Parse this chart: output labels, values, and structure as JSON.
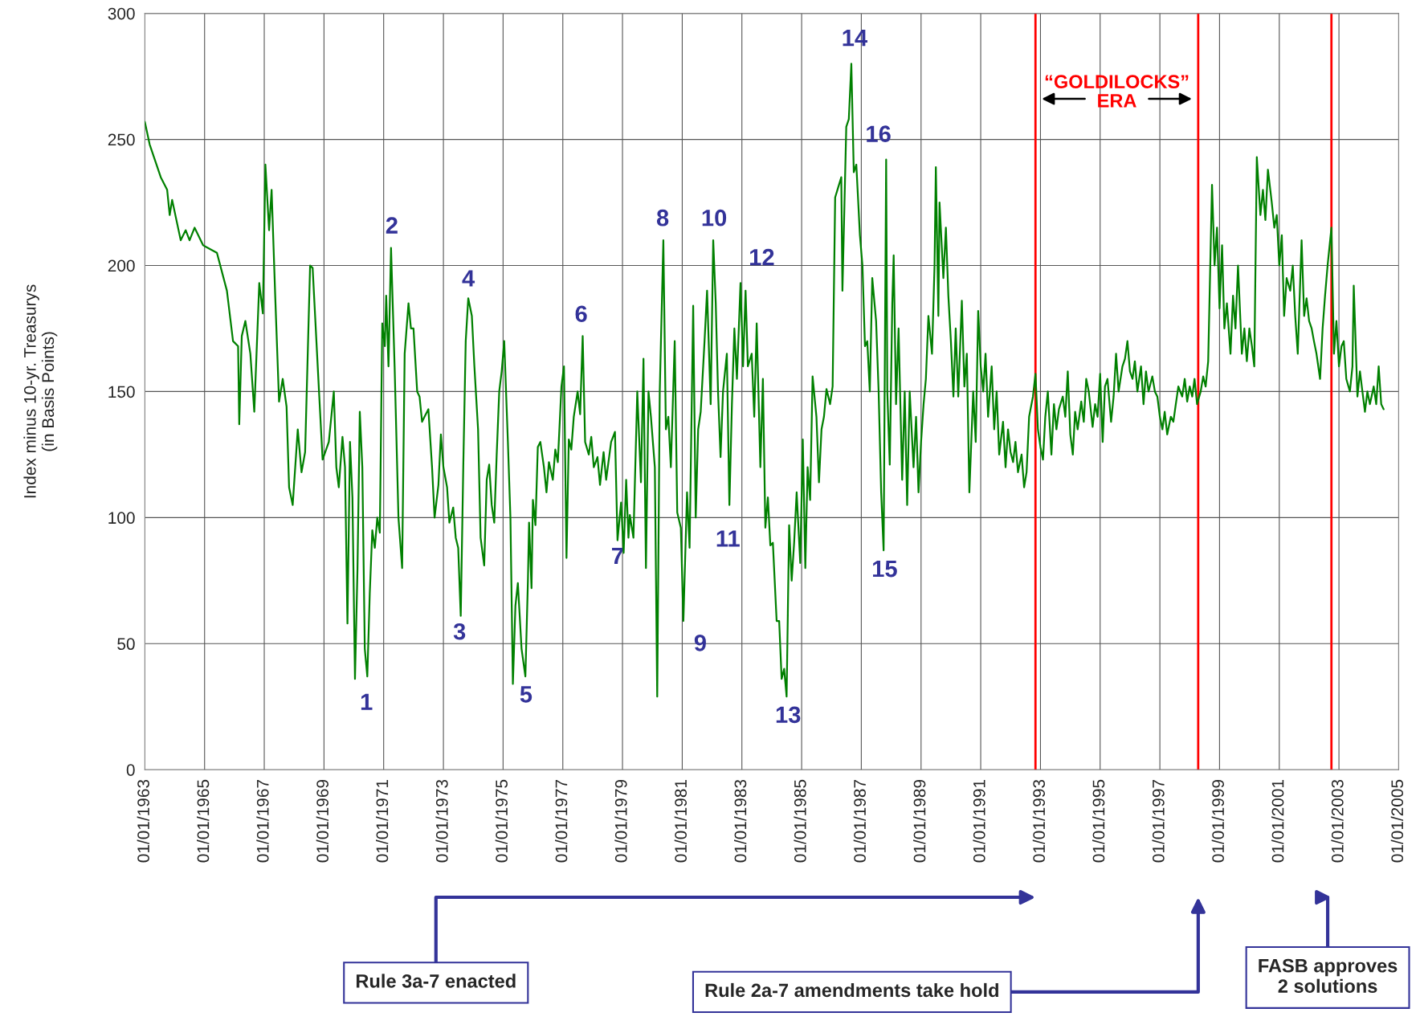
{
  "chart_data": {
    "type": "line",
    "ylabel": "Index minus 10-yr. Treasurys\n(in Basis Points)",
    "xlim": [
      "1963-01-01",
      "2005-01-01"
    ],
    "ylim": [
      0,
      300
    ],
    "yticks": [
      0,
      50,
      100,
      150,
      200,
      250,
      300
    ],
    "xticks": [
      {
        "value": "1963-01-01",
        "label": "01/01/1963"
      },
      {
        "value": "1965-01-01",
        "label": "01/01/1965"
      },
      {
        "value": "1967-01-01",
        "label": "01/01/1967"
      },
      {
        "value": "1969-01-01",
        "label": "01/01/1969"
      },
      {
        "value": "1971-01-01",
        "label": "01/01/1971"
      },
      {
        "value": "1973-01-01",
        "label": "01/01/1973"
      },
      {
        "value": "1975-01-01",
        "label": "01/01/1975"
      },
      {
        "value": "1977-01-01",
        "label": "01/01/1977"
      },
      {
        "value": "1979-01-01",
        "label": "01/01/1979"
      },
      {
        "value": "1981-01-01",
        "label": "01/01/1981"
      },
      {
        "value": "1983-01-01",
        "label": "01/01/1983"
      },
      {
        "value": "1985-01-01",
        "label": "01/01/1985"
      },
      {
        "value": "1987-01-01",
        "label": "01/01/1987"
      },
      {
        "value": "1989-01-01",
        "label": "01/01/1989"
      },
      {
        "value": "1991-01-01",
        "label": "01/01/1991"
      },
      {
        "value": "1993-01-01",
        "label": "01/01/1993"
      },
      {
        "value": "1995-01-01",
        "label": "01/01/1995"
      },
      {
        "value": "1997-01-01",
        "label": "01/01/1997"
      },
      {
        "value": "1999-01-01",
        "label": "01/01/1999"
      },
      {
        "value": "2001-01-01",
        "label": "01/01/2001"
      },
      {
        "value": "2003-01-01",
        "label": "01/01/2003"
      },
      {
        "value": "2005-01-01",
        "label": "01/01/2005"
      }
    ],
    "grid": true,
    "marker": "none",
    "line_style": "solid",
    "series": [
      {
        "color": "#008000",
        "x": [
          "1963-01-01",
          "1963-03-01",
          "1963-07-15",
          "1963-10-01",
          "1963-11-01",
          "1963-12-01",
          "1964-03-15",
          "1964-05-15",
          "1964-07-01",
          "1964-09-01",
          "1964-12-15",
          "1965-06-01",
          "1965-10-01",
          "1965-12-15",
          "1966-02-15",
          "1966-03-01",
          "1966-04-01",
          "1966-05-15",
          "1966-07-15",
          "1966-09-01",
          "1966-11-01",
          "1966-12-15",
          "1967-01-15",
          "1967-03-01",
          "1967-04-01",
          "1967-05-15",
          "1967-07-01",
          "1967-08-15",
          "1967-10-01",
          "1967-11-01",
          "1967-12-15",
          "1968-02-15",
          "1968-04-01",
          "1968-05-15",
          "1968-07-15",
          "1968-08-15",
          "1968-11-01",
          "1968-12-15",
          "1969-03-01",
          "1969-05-01",
          "1969-06-01",
          "1969-07-01",
          "1969-08-15",
          "1969-09-15",
          "1969-10-15",
          "1969-11-15",
          "1969-12-15",
          "1970-01-15",
          "1970-02-15",
          "1970-03-15",
          "1970-04-15",
          "1970-05-15",
          "1970-06-15",
          "1970-07-15",
          "1970-08-15",
          "1970-09-15",
          "1970-10-15",
          "1970-11-15",
          "1970-12-15",
          "1971-01-15",
          "1971-02-01",
          "1971-03-01",
          "1971-04-01",
          "1971-05-15",
          "1971-07-01",
          "1971-08-15",
          "1971-09-15",
          "1971-11-01",
          "1971-12-01",
          "1972-01-01",
          "1972-02-15",
          "1972-03-15",
          "1972-04-15",
          "1972-05-15",
          "1972-07-01",
          "1972-08-15",
          "1972-09-15",
          "1972-11-01",
          "1972-12-01",
          "1973-01-01",
          "1973-02-15",
          "1973-03-15",
          "1973-05-01",
          "1973-06-01",
          "1973-07-01",
          "1973-08-01",
          "1973-09-01",
          "1973-10-01",
          "1973-11-01",
          "1973-12-15",
          "1974-01-15",
          "1974-03-01",
          "1974-04-01",
          "1974-05-15",
          "1974-06-15",
          "1974-07-15",
          "1974-08-15",
          "1974-09-15",
          "1974-10-15",
          "1974-11-15",
          "1974-12-15",
          "1975-01-15",
          "1975-03-01",
          "1975-04-01",
          "1975-05-01",
          "1975-06-01",
          "1975-07-01",
          "1975-08-15",
          "1975-10-01",
          "1975-11-01",
          "1975-11-15",
          "1975-12-15",
          "1976-01-01",
          "1976-02-01",
          "1976-03-01",
          "1976-04-01",
          "1976-05-15",
          "1976-06-15",
          "1976-07-15",
          "1976-09-01",
          "1976-10-01",
          "1976-11-01",
          "1976-12-15",
          "1977-01-15",
          "1977-02-15",
          "1977-03-15",
          "1977-04-15",
          "1977-05-15",
          "1977-07-01",
          "1977-08-01",
          "1977-09-01",
          "1977-10-01",
          "1977-11-15",
          "1977-12-15",
          "1978-01-15",
          "1978-03-01",
          "1978-04-01",
          "1978-05-15",
          "1978-06-15",
          "1978-08-15",
          "1978-10-01",
          "1978-11-01",
          "1978-12-15",
          "1979-01-15",
          "1979-02-15",
          "1979-03-15",
          "1979-04-01",
          "1979-05-15",
          "1979-07-01",
          "1979-08-15",
          "1979-09-15",
          "1979-10-15",
          "1979-11-15",
          "1979-12-15",
          "1980-02-01",
          "1980-03-01",
          "1980-04-01",
          "1980-05-15",
          "1980-06-15",
          "1980-07-15",
          "1980-08-15",
          "1980-10-01",
          "1980-11-01",
          "1980-12-15",
          "1981-01-15",
          "1981-03-01",
          "1981-04-01",
          "1981-05-15",
          "1981-06-15",
          "1981-07-15",
          "1981-08-15",
          "1981-10-01",
          "1981-11-01",
          "1981-12-15",
          "1982-01-15",
          "1982-02-15",
          "1982-03-15",
          "1982-04-15",
          "1982-05-15",
          "1982-07-01",
          "1982-08-01",
          "1982-09-01",
          "1982-10-01",
          "1982-11-01",
          "1982-12-15",
          "1983-01-15",
          "1983-02-15",
          "1983-03-15",
          "1983-05-01",
          "1983-06-01",
          "1983-07-01",
          "1983-08-15",
          "1983-09-15",
          "1983-10-15",
          "1983-11-15",
          "1983-12-15",
          "1984-01-15",
          "1984-03-01",
          "1984-04-01",
          "1984-05-01",
          "1984-06-01",
          "1984-07-01",
          "1984-08-01",
          "1984-09-01",
          "1984-10-01",
          "1984-11-01",
          "1984-12-15",
          "1985-01-15",
          "1985-02-15",
          "1985-03-15",
          "1985-04-15",
          "1985-05-15",
          "1985-07-01",
          "1985-08-01",
          "1985-09-01",
          "1985-10-01",
          "1985-11-01",
          "1985-12-15",
          "1986-01-15",
          "1986-02-15",
          "1986-03-15",
          "1986-05-01",
          "1986-05-15",
          "1986-07-01",
          "1986-08-01",
          "1986-09-01",
          "1986-10-01",
          "1986-11-01",
          "1986-12-15",
          "1987-01-15",
          "1987-02-15",
          "1987-03-15",
          "1987-04-15",
          "1987-05-15",
          "1987-07-01",
          "1987-08-01",
          "1987-09-01",
          "1987-10-01",
          "1987-11-01",
          "1987-11-15",
          "1987-12-15",
          "1988-01-15",
          "1988-02-01",
          "1988-03-01",
          "1988-04-01",
          "1988-05-15",
          "1988-06-15",
          "1988-07-15",
          "1988-08-15",
          "1988-10-01",
          "1988-11-01",
          "1988-12-01",
          "1989-01-01",
          "1989-02-01",
          "1989-03-01",
          "1989-04-01",
          "1989-05-15",
          "1989-06-15",
          "1989-07-01",
          "1989-08-01",
          "1989-08-15",
          "1989-10-01",
          "1989-11-01",
          "1989-12-01",
          "1990-01-01",
          "1990-02-01",
          "1990-03-01",
          "1990-04-01",
          "1990-05-15",
          "1990-06-15",
          "1990-07-15",
          "1990-08-15",
          "1990-10-01",
          "1990-11-01",
          "1990-12-01",
          "1991-01-01",
          "1991-02-01",
          "1991-03-01",
          "1991-04-01",
          "1991-05-15",
          "1991-06-15",
          "1991-07-15",
          "1991-08-15",
          "1991-10-01",
          "1991-11-01",
          "1991-12-01",
          "1992-01-01",
          "1992-02-01",
          "1992-03-01",
          "1992-04-01",
          "1992-05-15",
          "1992-06-15",
          "1992-07-15",
          "1992-08-15",
          "1992-10-01",
          "1992-11-01",
          "1992-12-01",
          "1993-01-01",
          "1993-02-01",
          "1993-03-01",
          "1993-04-01",
          "1993-05-15",
          "1993-06-15",
          "1993-07-15",
          "1993-08-15",
          "1993-10-01",
          "1993-11-01",
          "1993-12-01",
          "1994-01-01",
          "1994-02-01",
          "1994-03-01",
          "1994-04-01",
          "1994-05-15",
          "1994-06-15",
          "1994-07-15",
          "1994-08-15",
          "1994-10-01",
          "1994-11-01",
          "1994-12-01",
          "1995-01-01",
          "1995-02-01",
          "1995-03-01",
          "1995-04-01",
          "1995-05-15",
          "1995-06-15",
          "1995-07-15",
          "1995-08-15",
          "1995-10-01",
          "1995-11-01",
          "1995-12-01",
          "1996-01-01",
          "1996-02-01",
          "1996-03-01",
          "1996-04-01",
          "1996-05-15",
          "1996-06-15",
          "1996-07-15",
          "1996-08-15",
          "1996-10-01",
          "1996-11-01",
          "1996-12-01",
          "1997-01-01",
          "1997-02-01",
          "1997-03-01",
          "1997-04-01",
          "1997-05-15",
          "1997-06-15",
          "1997-07-15",
          "1997-08-15",
          "1997-10-01",
          "1997-11-01",
          "1997-12-01",
          "1998-01-01",
          "1998-02-01",
          "1998-03-01",
          "1998-04-01",
          "1998-05-15",
          "1998-06-15",
          "1998-07-15",
          "1998-08-15",
          "1998-10-01",
          "1998-11-01",
          "1998-12-01",
          "1999-01-01",
          "1999-02-01",
          "1999-03-01",
          "1999-04-01",
          "1999-05-15",
          "1999-06-15",
          "1999-07-15",
          "1999-08-15",
          "1999-10-01",
          "1999-11-01",
          "1999-12-01",
          "2000-01-01",
          "2000-02-01",
          "2000-03-01",
          "2000-04-01",
          "2000-05-15",
          "2000-06-15",
          "2000-07-15",
          "2000-08-15",
          "2000-10-01",
          "2000-11-01",
          "2000-12-01",
          "2001-01-01",
          "2001-02-01",
          "2001-03-01",
          "2001-04-01",
          "2001-05-15",
          "2001-06-15",
          "2001-07-15",
          "2001-08-15",
          "2001-10-01",
          "2001-11-01",
          "2001-12-01",
          "2002-01-01",
          "2002-02-01",
          "2002-03-01",
          "2002-04-01",
          "2002-05-15",
          "2002-06-15",
          "2002-07-15",
          "2002-08-15",
          "2002-10-01",
          "2002-11-01",
          "2002-12-01",
          "2003-01-01",
          "2003-02-01",
          "2003-03-01",
          "2003-04-01",
          "2003-05-15",
          "2003-06-15",
          "2003-07-01",
          "2003-08-15",
          "2003-09-15",
          "2003-10-15",
          "2003-11-15",
          "2003-12-15",
          "2004-01-15",
          "2004-03-01",
          "2004-04-01",
          "2004-05-01",
          "2004-06-01",
          "2004-07-01"
        ],
        "values": [
          257,
          248,
          235,
          230,
          220,
          226,
          210,
          214,
          210,
          215,
          208,
          205,
          190,
          170,
          168,
          137,
          172,
          178,
          165,
          142,
          193,
          181,
          240,
          214,
          230,
          188,
          146,
          155,
          144,
          112,
          105,
          135,
          118,
          126,
          200,
          199,
          150,
          123,
          130,
          150,
          120,
          112,
          132,
          120,
          58,
          130,
          108,
          36,
          80,
          142,
          120,
          48,
          37,
          70,
          95,
          88,
          100,
          94,
          177,
          168,
          188,
          160,
          207,
          160,
          100,
          80,
          165,
          185,
          175,
          175,
          150,
          148,
          138,
          140,
          143,
          120,
          100,
          113,
          133,
          120,
          112,
          98,
          104,
          92,
          88,
          61,
          120,
          170,
          187,
          180,
          160,
          135,
          92,
          81,
          115,
          121,
          105,
          98,
          125,
          150,
          158,
          170,
          130,
          100,
          34,
          65,
          74,
          48,
          37,
          75,
          98,
          72,
          107,
          97,
          128,
          130,
          120,
          110,
          122,
          115,
          127,
          122,
          152,
          160,
          84,
          131,
          127,
          140,
          150,
          141,
          172,
          130,
          125,
          132,
          120,
          124,
          113,
          126,
          115,
          130,
          134,
          91,
          106,
          86,
          115,
          92,
          101,
          92,
          150,
          114,
          163,
          80,
          150,
          140,
          120,
          29,
          150,
          210,
          135,
          140,
          120,
          170,
          102,
          96,
          59,
          110,
          88,
          184,
          100,
          135,
          142,
          170,
          190,
          145,
          210,
          185,
          150,
          124,
          150,
          165,
          105,
          145,
          175,
          155,
          193,
          160,
          190,
          160,
          165,
          140,
          177,
          120,
          155,
          96,
          108,
          89,
          90,
          59,
          59,
          36,
          40,
          29,
          97,
          75,
          90,
          110,
          82,
          131,
          80,
          120,
          107,
          156,
          140,
          114,
          135,
          140,
          151,
          145,
          152,
          227,
          230,
          235,
          190,
          255,
          258,
          280,
          237,
          240,
          212,
          200,
          168,
          170,
          150,
          195,
          178,
          150,
          110,
          87,
          242,
          150,
          121,
          185,
          204,
          145,
          175,
          115,
          150,
          105,
          150,
          120,
          140,
          110,
          130,
          145,
          155,
          180,
          165,
          200,
          239,
          180,
          225,
          195,
          215,
          188,
          170,
          148,
          175,
          148,
          186,
          152,
          165,
          110,
          150,
          130,
          182,
          160,
          150,
          165,
          140,
          160,
          135,
          150,
          125,
          138,
          120,
          135,
          126,
          122,
          130,
          118,
          125,
          112,
          118,
          140,
          148,
          157,
          135,
          128,
          123,
          140,
          150,
          125,
          145,
          135,
          143,
          148,
          140,
          158,
          133,
          125,
          142,
          135,
          146,
          138,
          155,
          150,
          136,
          145,
          140,
          157,
          130,
          152,
          155,
          138,
          148,
          165,
          150,
          160,
          163,
          170,
          158,
          155,
          162,
          150,
          160,
          145,
          158,
          150,
          156,
          150,
          148,
          140,
          135,
          142,
          133,
          140,
          138,
          145,
          152,
          148,
          155,
          146,
          152,
          148,
          155,
          145,
          150,
          156,
          152,
          162,
          232,
          200,
          215,
          183,
          208,
          175,
          185,
          165,
          188,
          175,
          200,
          165,
          175,
          162,
          175,
          168,
          160,
          243,
          220,
          230,
          218,
          238,
          225,
          215,
          220,
          200,
          212,
          180,
          195,
          190,
          200,
          180,
          165,
          210,
          180,
          187,
          178,
          175,
          170,
          165,
          155,
          175,
          188,
          200,
          215,
          165,
          178,
          160,
          168,
          170,
          155,
          150,
          160,
          192,
          148,
          158,
          150,
          142,
          150,
          145,
          152,
          145,
          160,
          145,
          143
        ]
      }
    ],
    "ref_lines": [
      {
        "axis": "x",
        "value": "1992-11-01",
        "color": "#ff0000"
      },
      {
        "axis": "x",
        "value": "1998-04-15",
        "color": "#ff0000"
      },
      {
        "axis": "x",
        "value": "2002-10-01",
        "color": "#ff0000"
      }
    ],
    "annotations": [
      "1",
      "2",
      "3",
      "4",
      "5",
      "6",
      "7",
      "8",
      "9",
      "10",
      "11",
      "12",
      "13",
      "14",
      "15",
      "16",
      "“GOLDILOCKS”\nERA",
      "Rule 3a-7 enacted",
      "Rule 2a-7 amendments take hold",
      "FASB approves\n2 solutions"
    ]
  }
}
